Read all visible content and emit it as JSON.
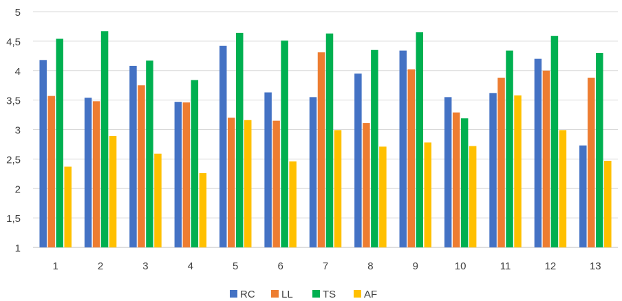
{
  "chart_data": {
    "type": "bar",
    "title": "",
    "xlabel": "",
    "ylabel": "",
    "categories": [
      "1",
      "2",
      "3",
      "4",
      "5",
      "6",
      "7",
      "8",
      "9",
      "10",
      "11",
      "12",
      "13"
    ],
    "ylim": [
      1,
      5
    ],
    "yticks": [
      "1",
      "1,5",
      "2",
      "2,5",
      "3",
      "3,5",
      "4",
      "4,5",
      "5"
    ],
    "grid": true,
    "legend_position": "bottom",
    "series": [
      {
        "name": "RC",
        "color": "#4472C4",
        "values": [
          4.18,
          3.54,
          4.08,
          3.47,
          4.42,
          3.63,
          3.55,
          3.95,
          4.34,
          3.55,
          3.62,
          4.2,
          2.73
        ]
      },
      {
        "name": "LL",
        "color": "#ED7D31",
        "values": [
          3.57,
          3.48,
          3.75,
          3.46,
          3.2,
          3.15,
          4.31,
          3.11,
          4.02,
          3.29,
          3.88,
          4.0,
          3.88
        ]
      },
      {
        "name": "TS",
        "color": "#00B050",
        "values": [
          4.54,
          4.67,
          4.17,
          3.84,
          4.64,
          4.51,
          4.63,
          4.35,
          4.65,
          3.19,
          4.34,
          4.59,
          4.3
        ]
      },
      {
        "name": "AF",
        "color": "#FFC000",
        "values": [
          2.37,
          2.89,
          2.59,
          2.26,
          3.16,
          2.46,
          2.99,
          2.71,
          2.78,
          2.72,
          3.58,
          2.99,
          2.47
        ]
      }
    ]
  }
}
